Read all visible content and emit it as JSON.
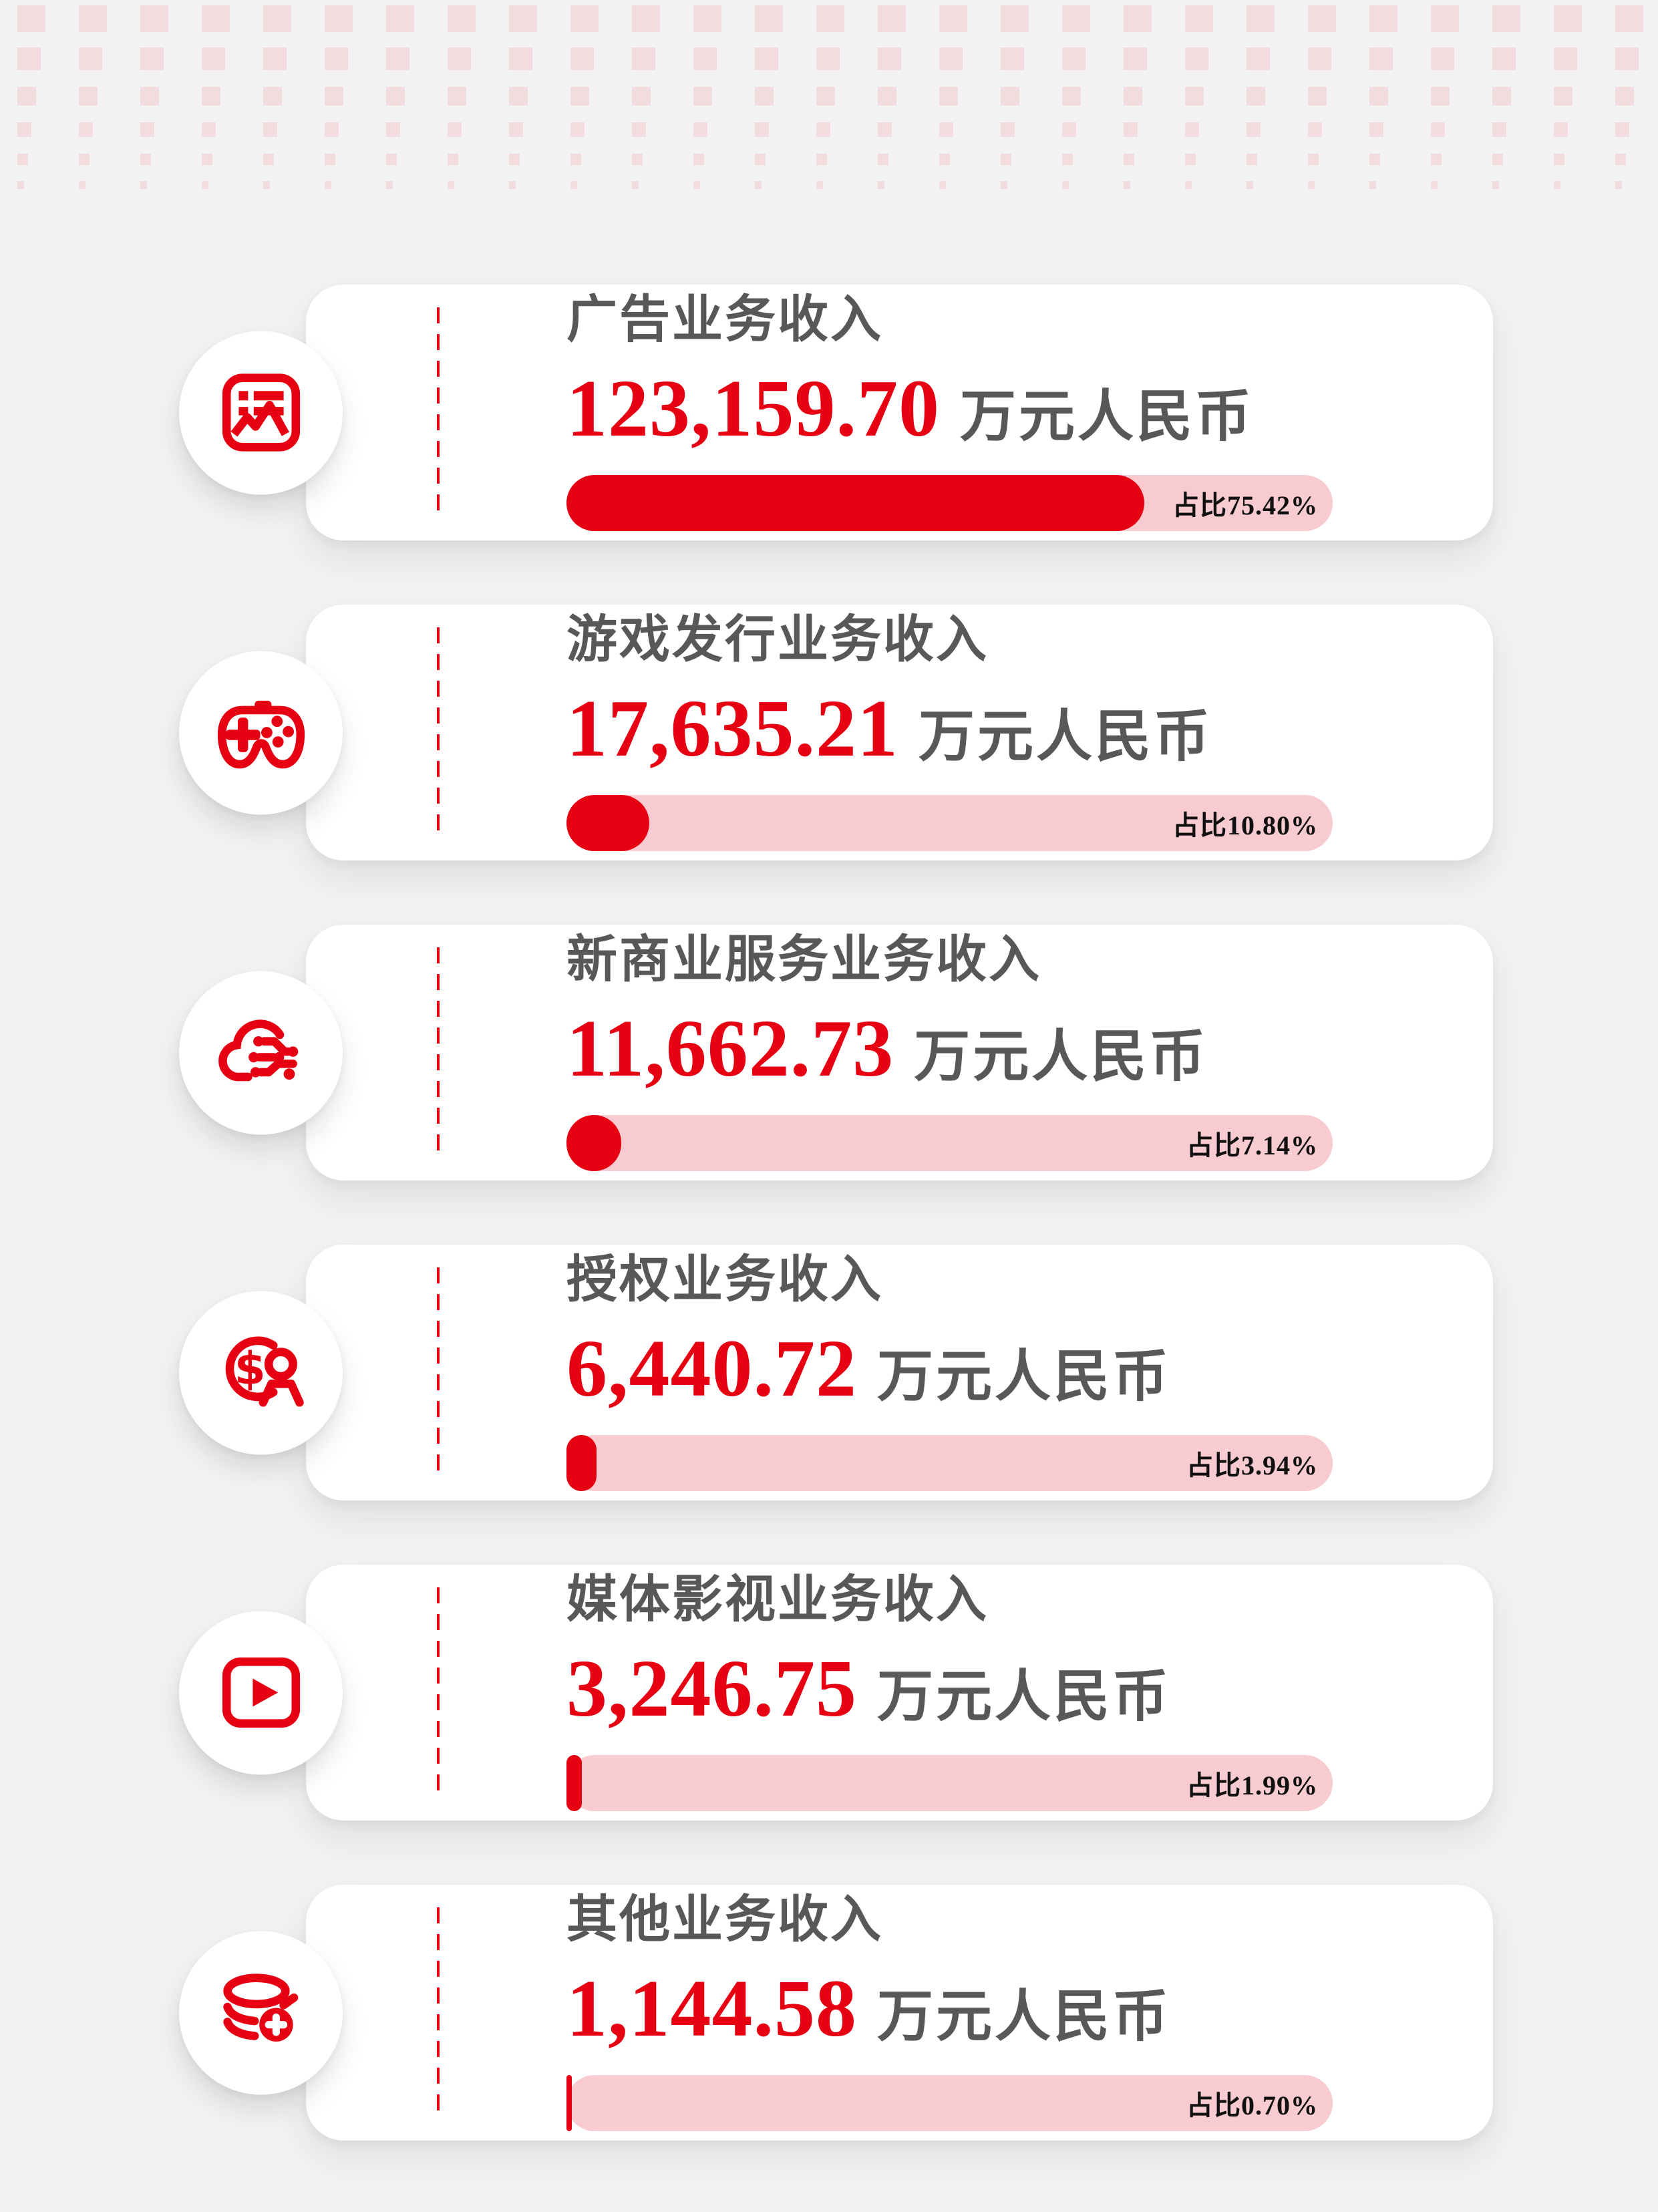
{
  "theme": {
    "accent_red": "#e60012",
    "track_pink": "#f7cbcf",
    "pattern_pink": "#f3dce0",
    "text_gray": "#58585b",
    "background": "#f2f2f3"
  },
  "cards": [
    {
      "icon": "ad-image-icon",
      "title": "广告业务收入",
      "amount": "123,159.70",
      "unit": "万元人民币",
      "share_label": "占比75.42%",
      "share_pct": 75.42
    },
    {
      "icon": "gamepad-icon",
      "title": "游戏发行业务收入",
      "amount": "17,635.21",
      "unit": "万元人民币",
      "share_label": "占比10.80%",
      "share_pct": 10.8
    },
    {
      "icon": "cloud-network-icon",
      "title": "新商业服务业务收入",
      "amount": "11,662.73",
      "unit": "万元人民币",
      "share_label": "占比7.14%",
      "share_pct": 7.14
    },
    {
      "icon": "dollar-person-icon",
      "title": "授权业务收入",
      "amount": "6,440.72",
      "unit": "万元人民币",
      "share_label": "占比3.94%",
      "share_pct": 3.94
    },
    {
      "icon": "play-video-icon",
      "title": "媒体影视业务收入",
      "amount": "3,246.75",
      "unit": "万元人民币",
      "share_label": "占比1.99%",
      "share_pct": 1.99
    },
    {
      "icon": "coins-plus-icon",
      "title": "其他业务收入",
      "amount": "1,144.58",
      "unit": "万元人民币",
      "share_label": "占比0.70%",
      "share_pct": 0.7
    }
  ],
  "chart_data": {
    "type": "bar",
    "categories": [
      "广告业务收入",
      "游戏发行业务收入",
      "新商业服务业务收入",
      "授权业务收入",
      "媒体影视业务收入",
      "其他业务收入"
    ],
    "series": [
      {
        "name": "收入(万元人民币)",
        "values": [
          123159.7,
          17635.21,
          11662.73,
          6440.72,
          3246.75,
          1144.58
        ]
      },
      {
        "name": "占比(%)",
        "values": [
          75.42,
          10.8,
          7.14,
          3.94,
          1.99,
          0.7
        ]
      }
    ],
    "unit": "万元人民币",
    "share_axis_range": [
      0,
      100
    ],
    "orientation": "horizontal",
    "legend": "none",
    "grid": false
  }
}
